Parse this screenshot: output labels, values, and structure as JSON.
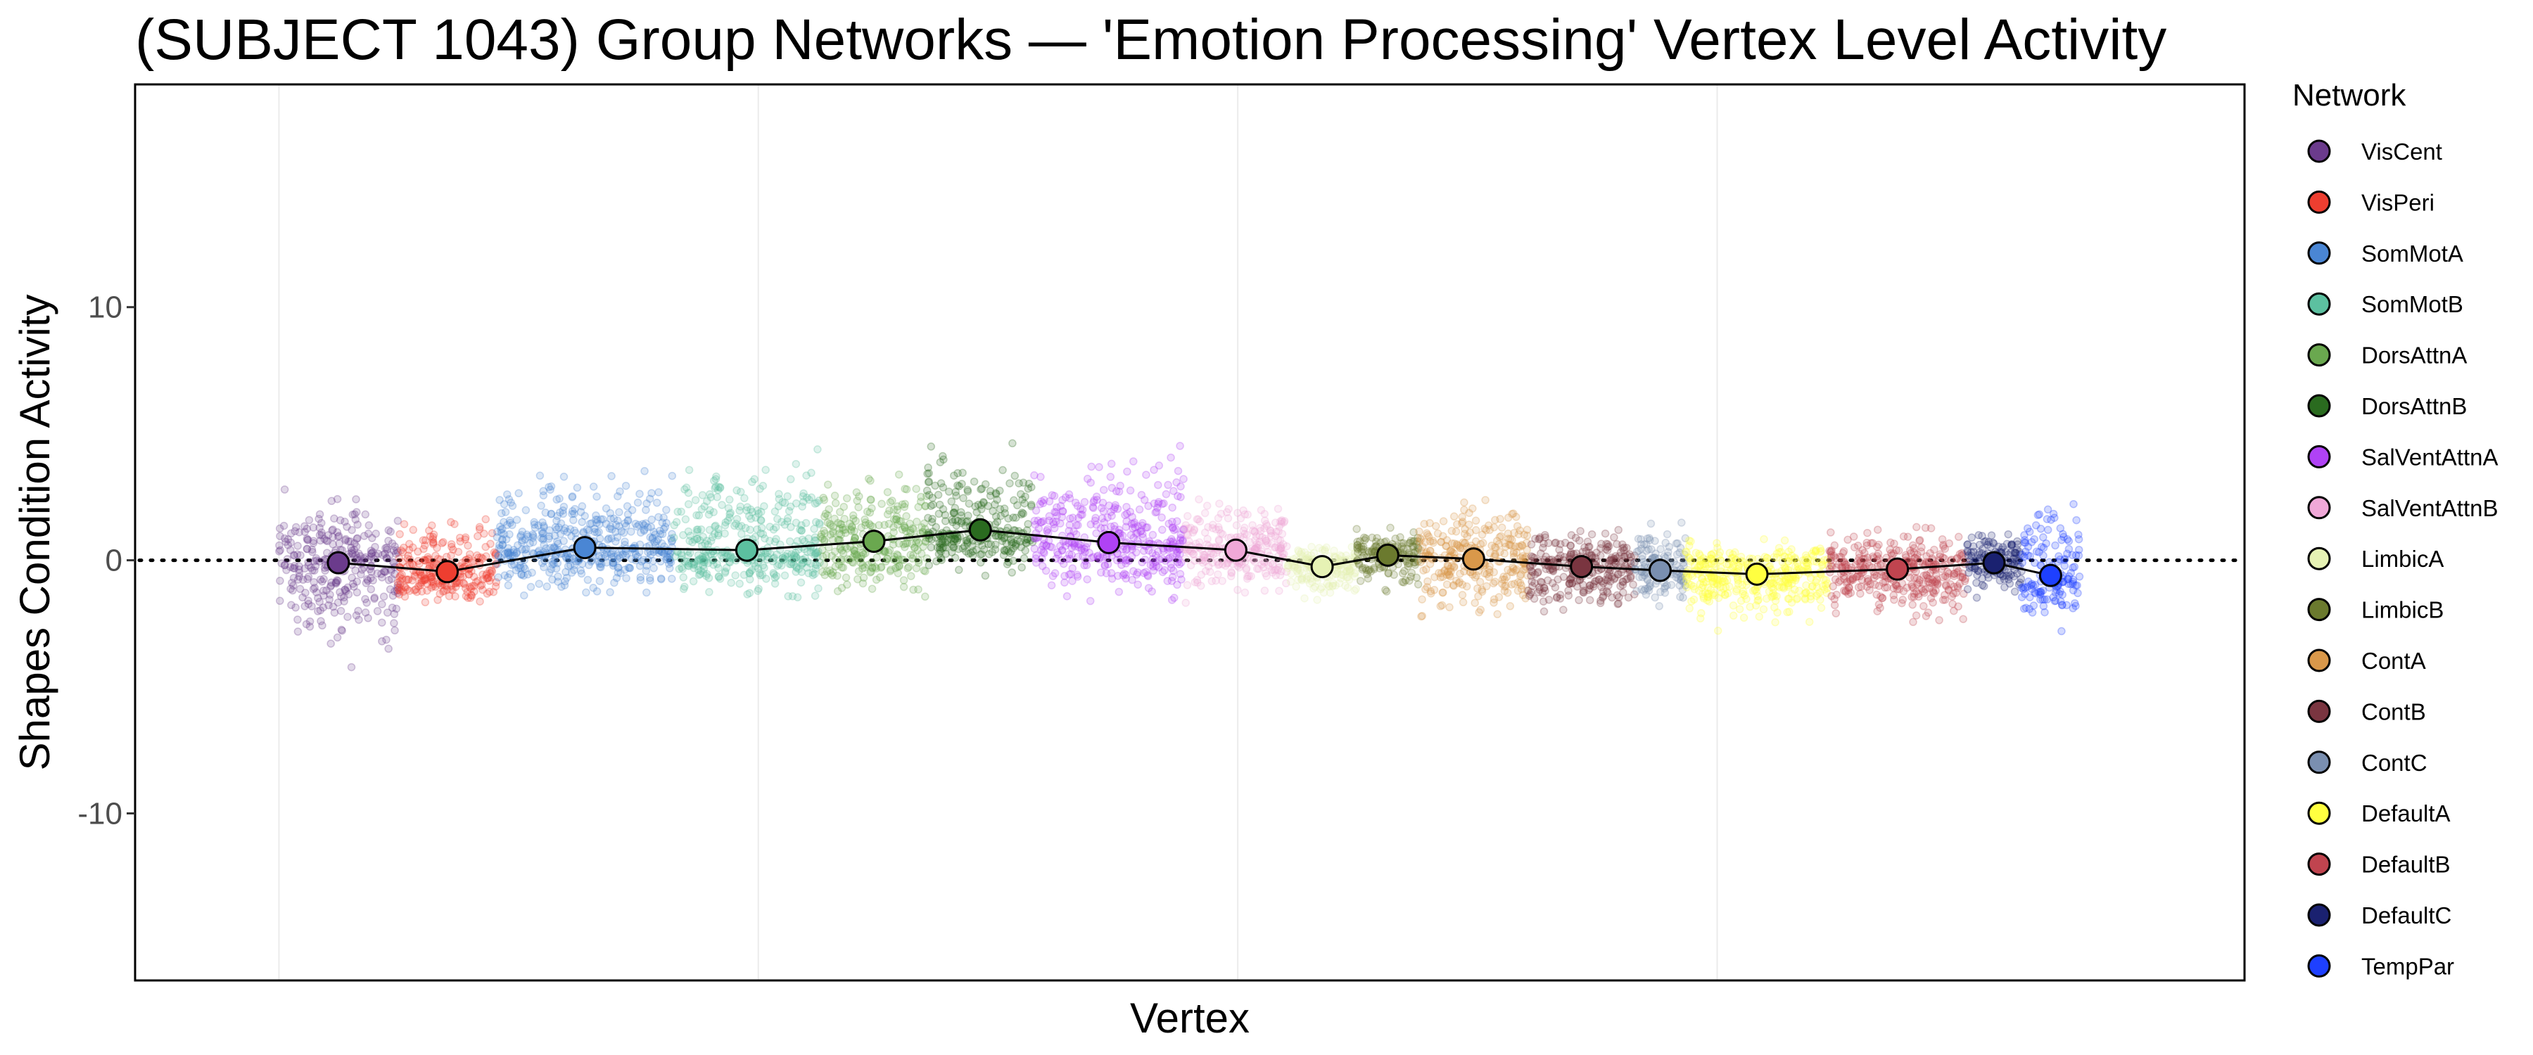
{
  "chart_data": {
    "type": "scatter",
    "title": "(SUBJECT 1043) Group Networks — 'Emotion Processing' Vertex Level Activity",
    "xlabel": "Vertex",
    "ylabel": "Shapes Condition Activity",
    "ylim": [
      -16.6,
      18.8
    ],
    "xlim": [
      -1500,
      20500
    ],
    "yticks": [
      10,
      0,
      -10
    ],
    "ytick_labels": [
      "10",
      "0",
      "-10"
    ],
    "x_gridlines": [
      0,
      5000,
      10000,
      15000
    ],
    "reference_line_y": 0,
    "grid": true,
    "legend": {
      "title": "Network",
      "placement": "right"
    },
    "series": [
      {
        "name": "VisCent",
        "color": "#6b3b8c",
        "x_range": [
          0,
          1240
        ],
        "mean": -0.1,
        "range": [
          -4.3,
          3.3
        ]
      },
      {
        "name": "VisPeri",
        "color": "#ee3e30",
        "x_range": [
          1240,
          2270
        ],
        "mean": -0.45,
        "range": [
          -2.2,
          2.4
        ]
      },
      {
        "name": "SomMotA",
        "color": "#4a86d4",
        "x_range": [
          2270,
          4110
        ],
        "mean": 0.5,
        "range": [
          -1.7,
          4.2
        ]
      },
      {
        "name": "SomMotB",
        "color": "#5cc0a0",
        "x_range": [
          4110,
          5650
        ],
        "mean": 0.4,
        "range": [
          -1.9,
          5.2
        ]
      },
      {
        "name": "DorsAttnA",
        "color": "#6aa84f",
        "x_range": [
          5650,
          6760
        ],
        "mean": 0.75,
        "range": [
          -2.1,
          3.7
        ]
      },
      {
        "name": "DorsAttnB",
        "color": "#2a6b1f",
        "x_range": [
          6760,
          7870
        ],
        "mean": 1.2,
        "range": [
          -0.9,
          5.3
        ]
      },
      {
        "name": "SalVentAttnA",
        "color": "#b042f5",
        "x_range": [
          7870,
          9440
        ],
        "mean": 0.7,
        "range": [
          -2.0,
          5.1
        ]
      },
      {
        "name": "SalVentAttnB",
        "color": "#f0a8d8",
        "x_range": [
          9440,
          10520
        ],
        "mean": 0.4,
        "range": [
          -2.0,
          3.1
        ]
      },
      {
        "name": "LimbicA",
        "color": "#e6f2b4",
        "x_range": [
          10520,
          11240
        ],
        "mean": -0.25,
        "range": [
          -1.8,
          0.9
        ]
      },
      {
        "name": "LimbicB",
        "color": "#6b7a2e",
        "x_range": [
          11240,
          11890
        ],
        "mean": 0.2,
        "range": [
          -1.5,
          1.6
        ]
      },
      {
        "name": "ContA",
        "color": "#d9984a",
        "x_range": [
          11890,
          13030
        ],
        "mean": 0.05,
        "range": [
          -2.6,
          3.0
        ]
      },
      {
        "name": "ContB",
        "color": "#7a3540",
        "x_range": [
          13030,
          14140
        ],
        "mean": -0.25,
        "range": [
          -2.5,
          1.8
        ]
      },
      {
        "name": "ContC",
        "color": "#7a8fb0",
        "x_range": [
          14140,
          14670
        ],
        "mean": -0.4,
        "range": [
          -2.1,
          2.1
        ]
      },
      {
        "name": "DefaultA",
        "color": "#ffff40",
        "x_range": [
          14670,
          16160
        ],
        "mean": -0.55,
        "range": [
          -2.9,
          1.3
        ]
      },
      {
        "name": "DefaultB",
        "color": "#c0444f",
        "x_range": [
          16160,
          17600
        ],
        "mean": -0.35,
        "range": [
          -3.0,
          1.5
        ]
      },
      {
        "name": "DefaultC",
        "color": "#1a2170",
        "x_range": [
          17600,
          18175
        ],
        "mean": -0.1,
        "range": [
          -1.6,
          1.6
        ]
      },
      {
        "name": "TempPar",
        "color": "#1e40ff",
        "x_range": [
          18175,
          18780
        ],
        "mean": -0.6,
        "range": [
          -3.0,
          3.8
        ]
      }
    ]
  }
}
